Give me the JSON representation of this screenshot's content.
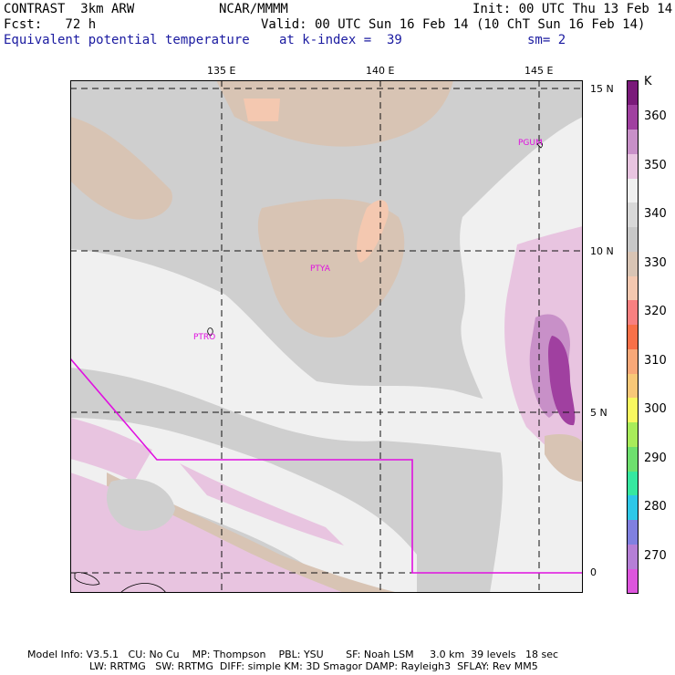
{
  "header": {
    "model": "CONTRAST  3km ARW",
    "org": "NCAR/MMMM",
    "init": "Init: 00 UTC Thu 13 Feb 14",
    "fcst": "Fcst:   72 h",
    "valid": "Valid: 00 UTC Sun 16 Feb 14 (10 ChT Sun 16 Feb 14)",
    "field": "Equivalent potential temperature",
    "level": "at k-index =  39",
    "smooth": "sm= 2"
  },
  "map": {
    "lon_labels": [
      "135 E",
      "140 E",
      "145 E"
    ],
    "lat_labels": [
      "15 N",
      "10 N",
      "5 N",
      "0"
    ],
    "stations": [
      "PGUM",
      "PTYA",
      "PTRO"
    ]
  },
  "colorbar": {
    "unit": "K",
    "ticks": [
      "270",
      "280",
      "290",
      "300",
      "310",
      "320",
      "330",
      "340",
      "350",
      "360"
    ],
    "colors": [
      "#dd55dd",
      "#b57fd6",
      "#8080e0",
      "#2ec8e8",
      "#36e8a0",
      "#6ee06e",
      "#a8ec5a",
      "#f8f860",
      "#f8c878",
      "#f8a878",
      "#f87048",
      "#f88080",
      "#f4c8b0",
      "#d8c4b4",
      "#c8c8c8",
      "#d8d8d8",
      "#f0f0f0",
      "#e8c4e0",
      "#c890c8",
      "#a040a0",
      "#7a1a7a"
    ]
  },
  "footer": {
    "line1": "Model Info: V3.5.1   CU: No Cu    MP: Thompson    PBL: YSU       SF: Noah LSM     3.0 km  39 levels   18 sec",
    "line2": "LW: RRTMG   SW: RRTMG  DIFF: simple KM: 3D Smagor DAMP: Rayleigh3  SFLAY: Rev MM5"
  }
}
